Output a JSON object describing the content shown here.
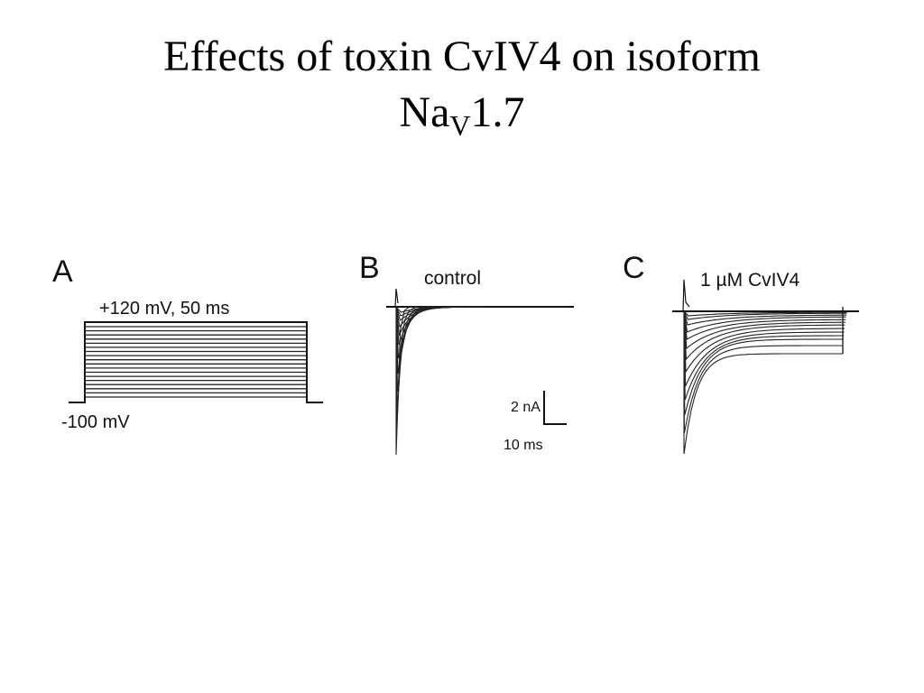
{
  "title": {
    "line1": "Effects of toxin CvIV4 on isoform",
    "line2_main": "Na",
    "line2_sub": "V",
    "line2_tail": "1.7"
  },
  "panels": {
    "a": {
      "letter": "A",
      "pulse_label": "+120 mV, 50 ms",
      "holding_label": "-100 mV",
      "protocol": {
        "holding_potential_mv": -100,
        "max_step_mv": 120,
        "duration_ms": 50,
        "step_count": 18
      }
    },
    "b": {
      "letter": "B",
      "condition_label": "control",
      "scale_current": "2 nA",
      "scale_time": "10 ms"
    },
    "c": {
      "letter": "C",
      "condition_label": "1 µM CvIV4"
    }
  }
}
